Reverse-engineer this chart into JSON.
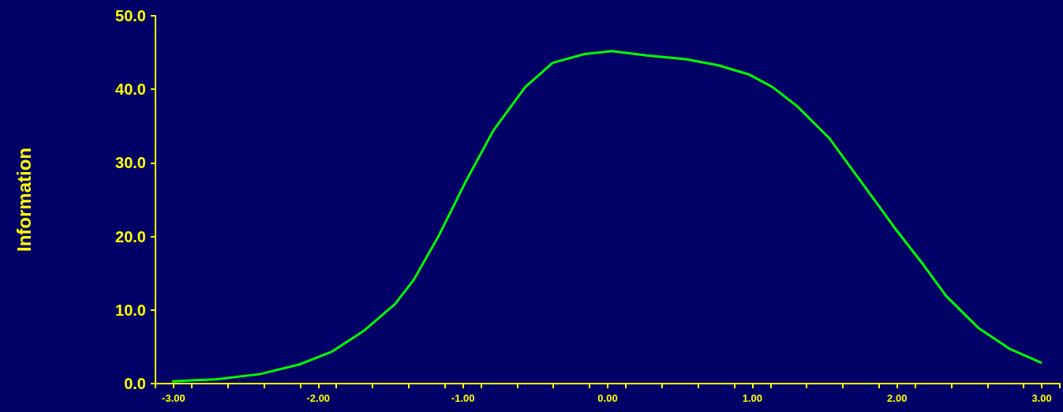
{
  "chart_data": {
    "type": "line",
    "ylabel": "Information",
    "xlim": [
      -3.125,
      3.125
    ],
    "xticks": [
      {
        "value": -3.125,
        "label": null
      },
      {
        "value": -3,
        "label": "-3.00"
      },
      {
        "value": -2.875,
        "label": null
      },
      {
        "value": -2.625,
        "label": null
      },
      {
        "value": -2.375,
        "label": null
      },
      {
        "value": -2.125,
        "label": null
      },
      {
        "value": -2,
        "label": "-2.00"
      },
      {
        "value": -1.875,
        "label": null
      },
      {
        "value": -1.625,
        "label": null
      },
      {
        "value": -1.375,
        "label": null
      },
      {
        "value": -1.125,
        "label": null
      },
      {
        "value": -1,
        "label": "-1.00"
      },
      {
        "value": -0.875,
        "label": null
      },
      {
        "value": -0.625,
        "label": null
      },
      {
        "value": -0.375,
        "label": null
      },
      {
        "value": -0.125,
        "label": null
      },
      {
        "value": 0,
        "label": "0.00"
      },
      {
        "value": 0.125,
        "label": null
      },
      {
        "value": 0.375,
        "label": null
      },
      {
        "value": 0.625,
        "label": null
      },
      {
        "value": 0.875,
        "label": null
      },
      {
        "value": 1,
        "label": "1.00"
      },
      {
        "value": 1.125,
        "label": null
      },
      {
        "value": 1.375,
        "label": null
      },
      {
        "value": 1.625,
        "label": null
      },
      {
        "value": 1.875,
        "label": null
      },
      {
        "value": 2,
        "label": "2.00"
      },
      {
        "value": 2.125,
        "label": null
      },
      {
        "value": 2.375,
        "label": null
      },
      {
        "value": 2.625,
        "label": null
      },
      {
        "value": 2.875,
        "label": null
      },
      {
        "value": 3,
        "label": "3.00"
      },
      {
        "value": 3.125,
        "label": null
      }
    ],
    "ylim": [
      0,
      50
    ],
    "yticks": [
      {
        "value": 0,
        "label": "0.0"
      },
      {
        "value": 10,
        "label": "10.0"
      },
      {
        "value": 20,
        "label": "20.0"
      },
      {
        "value": 30,
        "label": "30.0"
      },
      {
        "value": 40,
        "label": "40.0"
      },
      {
        "value": 50,
        "label": "50.0"
      }
    ],
    "grid": false,
    "marker": "none",
    "line_style": "solid",
    "x": [
      -3.01,
      -2.7,
      -2.4,
      -2.13,
      -1.91,
      -1.69,
      -1.47,
      -1.34,
      -1.17,
      -0.98,
      -0.79,
      -0.57,
      -0.38,
      -0.16,
      0.03,
      0.27,
      0.54,
      0.76,
      0.98,
      1.14,
      1.31,
      1.53,
      1.69,
      1.85,
      1.99,
      2.18,
      2.34,
      2.56,
      2.78,
      3.0
    ],
    "series": [
      {
        "color": "#00ff00",
        "values": [
          0.3,
          0.6,
          1.3,
          2.6,
          4.3,
          7.1,
          10.8,
          14.1,
          20.0,
          27.5,
          34.4,
          40.3,
          43.6,
          44.8,
          45.2,
          44.6,
          44.1,
          43.3,
          42.0,
          40.3,
          37.7,
          33.4,
          29.1,
          24.8,
          21.0,
          16.2,
          11.9,
          7.6,
          4.7,
          2.8
        ]
      }
    ]
  }
}
